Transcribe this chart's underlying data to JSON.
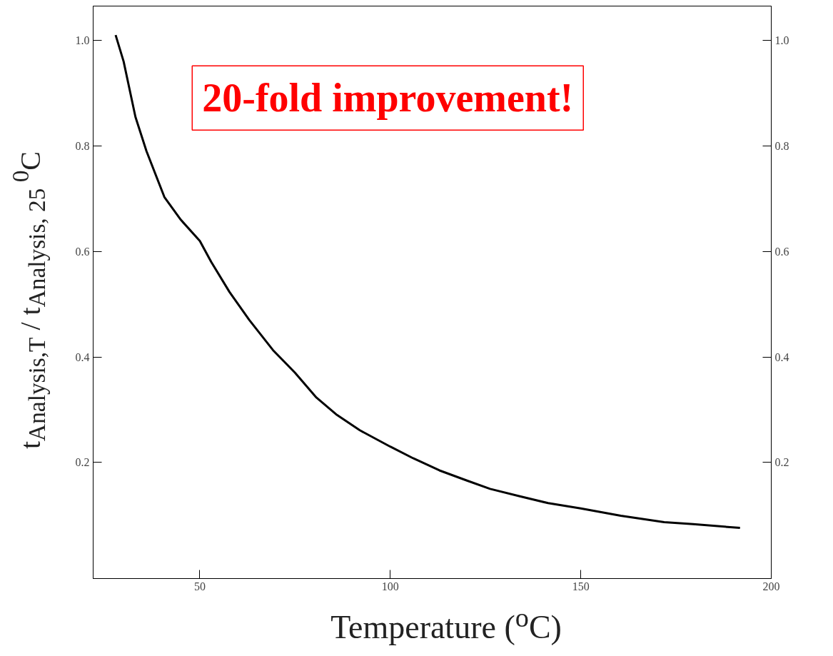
{
  "chart_data": {
    "type": "line",
    "xlabel": "Temperature ($^{o}$C)",
    "ylabel": "t$_{Analysis,T}$ / t$_{Analysis, 25 }$$^{0}$C",
    "annotations": [
      "20-fold improvement!"
    ],
    "x": [
      27.9,
      30,
      33.1,
      36,
      40.7,
      45,
      50,
      53,
      57.8,
      63,
      69.2,
      75,
      80.6,
      86,
      92,
      100,
      106,
      112.9,
      120,
      126.2,
      134,
      141.4,
      150,
      160.5,
      171.9,
      179.5,
      191.8
    ],
    "series": [
      {
        "color": "#000000",
        "values": [
          1.01,
          0.96,
          0.855,
          0.79,
          0.703,
          0.66,
          0.62,
          0.58,
          0.523,
          0.47,
          0.413,
          0.37,
          0.323,
          0.29,
          0.261,
          0.23,
          0.208,
          0.185,
          0.166,
          0.15,
          0.136,
          0.123,
          0.113,
          0.099,
          0.087,
          0.083,
          0.076
        ]
      }
    ],
    "xlim": [
      22,
      200
    ],
    "xticks": [
      50,
      100,
      150,
      200
    ],
    "ylim": [
      -0.02,
      1.065
    ],
    "yticks": [
      0.2,
      0.4,
      0.6,
      0.8,
      {
        "value": 1.0,
        "label": "1.0"
      }
    ],
    "y2lim": [
      -0.02,
      1.065
    ],
    "y2ticks": [
      0.2,
      0.4,
      0.6,
      0.8,
      {
        "value": 1.0,
        "label": "1.0"
      }
    ],
    "grid": false,
    "marker": "none",
    "line_style": "solid"
  }
}
